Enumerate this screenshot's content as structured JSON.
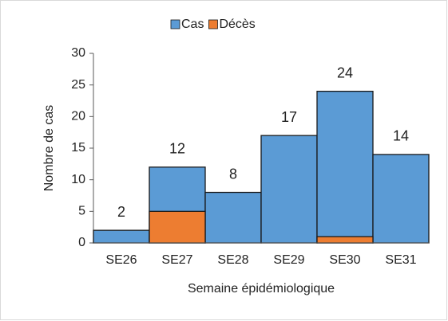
{
  "chart_data": {
    "type": "bar",
    "categories": [
      "SE26",
      "SE27",
      "SE28",
      "SE29",
      "SE30",
      "SE31"
    ],
    "series": [
      {
        "name": "Cas",
        "color": "#5b9bd5",
        "values": [
          2,
          12,
          8,
          17,
          24,
          14
        ]
      },
      {
        "name": "Décès",
        "color": "#ed7d31",
        "values": [
          0,
          5,
          0,
          0,
          1,
          0
        ]
      }
    ],
    "ylabel": "Nombre de cas",
    "xlabel": "Semaine épidémiologique",
    "ylim": [
      0,
      30
    ],
    "yticks": [
      0,
      5,
      10,
      15,
      20,
      25,
      30
    ],
    "legend": "top"
  }
}
